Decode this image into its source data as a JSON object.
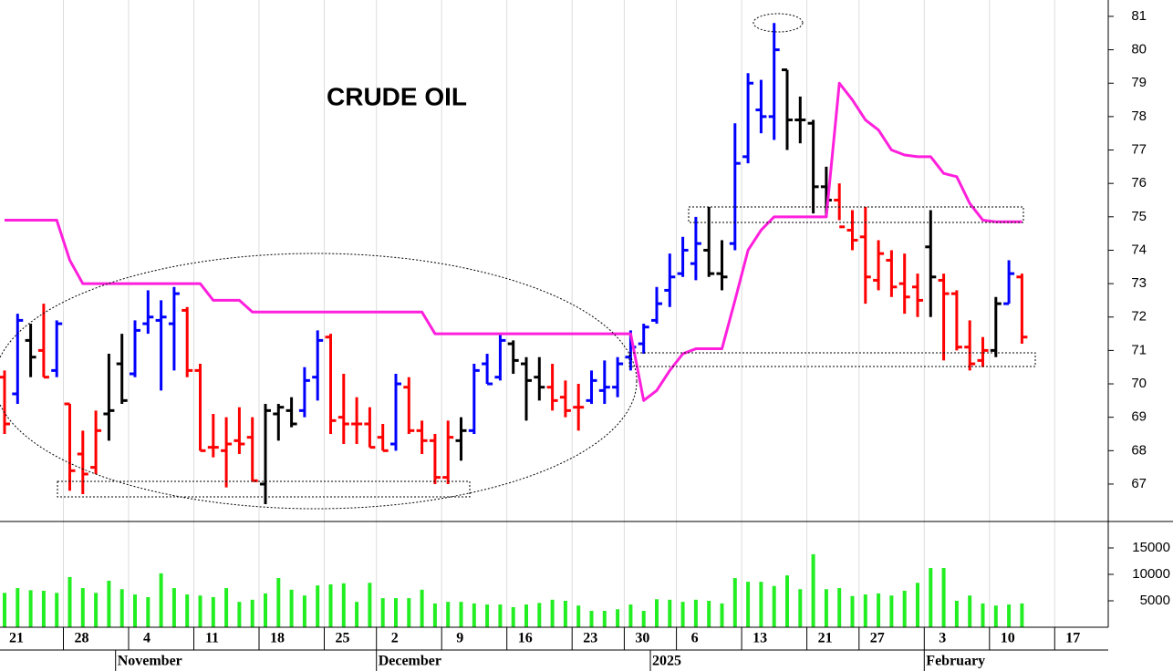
{
  "chart_data": {
    "type": "ohlc",
    "title": "CRUDE OIL",
    "categories": [
      "21",
      null,
      null,
      null,
      null,
      "28",
      null,
      null,
      null,
      null,
      "4",
      null,
      null,
      null,
      null,
      "11",
      null,
      null,
      null,
      null,
      "18",
      null,
      null,
      null,
      null,
      "25",
      null,
      null,
      null,
      "2",
      null,
      null,
      null,
      null,
      "9",
      null,
      null,
      null,
      null,
      "16",
      null,
      null,
      null,
      null,
      "23",
      null,
      null,
      null,
      "30",
      null,
      null,
      null,
      "6",
      null,
      null,
      null,
      null,
      "13",
      null,
      null,
      null,
      null,
      "21",
      null,
      null,
      null,
      "27",
      null,
      null,
      null,
      null,
      "3",
      null,
      null,
      null,
      null,
      "10",
      null,
      null,
      null,
      null,
      "17"
    ],
    "month_categories": [
      null,
      null,
      null,
      null,
      null,
      null,
      null,
      null,
      null,
      "November",
      null,
      null,
      null,
      null,
      null,
      null,
      null,
      null,
      null,
      null,
      null,
      null,
      null,
      null,
      null,
      null,
      null,
      null,
      null,
      "December",
      null,
      null,
      null,
      null,
      null,
      null,
      null,
      null,
      null,
      null,
      null,
      null,
      null,
      null,
      null,
      null,
      null,
      null,
      null,
      null,
      "2025",
      null,
      null,
      null,
      null,
      null,
      null,
      null,
      null,
      null,
      null,
      null,
      null,
      null,
      null,
      null,
      null,
      null,
      null,
      null,
      null,
      "February",
      null,
      null,
      null,
      null,
      null,
      null,
      null,
      null,
      null,
      null
    ],
    "ohlc": {
      "open": [
        70.2,
        69.7,
        71.3,
        71.0,
        70.4,
        69.4,
        67.9,
        67.5,
        69.1,
        70.6,
        70.3,
        71.8,
        71.9,
        71.8,
        72.2,
        70.4,
        68.1,
        68.0,
        68.3,
        68.4,
        67.0,
        69.1,
        69.2,
        69.2,
        70.2,
        71.4,
        69.0,
        68.8,
        68.8,
        68.4,
        68.2,
        69.9,
        68.6,
        68.3,
        67.2,
        68.3,
        68.6,
        70.6,
        70.2,
        71.2,
        70.6,
        70.2,
        69.9,
        69.6,
        69.3,
        69.5,
        69.8,
        69.9,
        70.8,
        71.2,
        71.9,
        72.8,
        73.3,
        73.6,
        74.0,
        73.3,
        74.2,
        76.8,
        78.2,
        78.0,
        79.4,
        77.9,
        77.8,
        75.9,
        75.5,
        74.6,
        74.4,
        73.1,
        73.7,
        73.0,
        72.9,
        74.1,
        73.1,
        72.7,
        71.1,
        70.7,
        71.0,
        72.4,
        73.2,
        null,
        null,
        null
      ],
      "high": [
        70.4,
        72.1,
        71.8,
        72.4,
        71.9,
        69.4,
        68.6,
        69.2,
        70.9,
        71.5,
        71.9,
        72.8,
        72.5,
        72.9,
        72.3,
        70.6,
        69.1,
        69.0,
        69.3,
        69.0,
        69.4,
        69.4,
        69.6,
        70.5,
        71.6,
        71.5,
        70.3,
        69.6,
        69.3,
        68.8,
        70.3,
        70.2,
        68.9,
        68.5,
        68.9,
        69.0,
        70.6,
        70.9,
        71.5,
        71.3,
        70.8,
        70.8,
        70.6,
        70.1,
        70.0,
        70.4,
        70.7,
        70.8,
        71.6,
        71.8,
        72.9,
        73.9,
        74.4,
        75.0,
        75.3,
        74.3,
        77.8,
        79.3,
        79.1,
        80.8,
        79.4,
        78.6,
        77.9,
        76.5,
        76.0,
        75.2,
        75.3,
        74.3,
        74.0,
        73.9,
        73.3,
        75.2,
        73.3,
        72.8,
        71.9,
        71.4,
        72.6,
        73.7,
        73.3,
        null,
        null,
        null
      ],
      "low": [
        68.5,
        69.4,
        70.2,
        70.2,
        70.2,
        66.8,
        66.7,
        67.3,
        68.3,
        69.4,
        70.2,
        71.5,
        69.8,
        70.4,
        70.2,
        68.0,
        67.8,
        66.9,
        67.9,
        67.1,
        66.4,
        68.3,
        68.7,
        69.0,
        69.5,
        68.5,
        68.2,
        68.2,
        68.1,
        68.0,
        68.0,
        68.5,
        67.9,
        67.0,
        67.0,
        67.7,
        68.5,
        70.0,
        70.1,
        70.3,
        68.9,
        69.5,
        69.2,
        69.0,
        68.6,
        69.4,
        69.4,
        69.6,
        70.4,
        70.9,
        71.8,
        72.3,
        73.2,
        73.1,
        73.2,
        72.8,
        74.0,
        76.6,
        77.5,
        77.3,
        77.0,
        77.2,
        75.1,
        75.0,
        74.9,
        74.0,
        72.4,
        72.8,
        72.6,
        72.1,
        72.0,
        72.0,
        70.7,
        71.0,
        70.4,
        70.5,
        70.8,
        72.4,
        71.2,
        null,
        null,
        null
      ],
      "close": [
        68.8,
        71.9,
        70.8,
        70.2,
        71.8,
        67.4,
        67.3,
        68.6,
        69.2,
        69.5,
        71.6,
        72.0,
        72.0,
        72.7,
        70.4,
        68.0,
        68.1,
        68.2,
        68.2,
        67.1,
        69.2,
        69.3,
        68.8,
        70.1,
        71.3,
        68.9,
        68.8,
        68.8,
        68.1,
        68.0,
        70.0,
        68.6,
        68.3,
        67.2,
        68.4,
        68.6,
        70.4,
        70.0,
        71.3,
        70.7,
        70.1,
        69.9,
        69.5,
        69.2,
        69.3,
        70.1,
        69.9,
        70.6,
        71.1,
        71.7,
        72.4,
        73.2,
        74.0,
        74.2,
        73.3,
        73.2,
        76.6,
        79.0,
        78.0,
        80.0,
        77.9,
        77.9,
        75.9,
        75.5,
        74.7,
        74.3,
        73.2,
        73.9,
        72.9,
        72.6,
        72.5,
        73.2,
        72.7,
        71.1,
        70.6,
        71.0,
        72.4,
        73.3,
        71.4,
        null,
        null,
        null
      ],
      "colors": [
        "red",
        "blue",
        "black",
        "red",
        "blue",
        "red",
        "red",
        "red",
        "black",
        "black",
        "blue",
        "blue",
        "blue",
        "blue",
        "red",
        "red",
        "red",
        "red",
        "red",
        "red",
        "black",
        "black",
        "black",
        "blue",
        "blue",
        "red",
        "red",
        "red",
        "red",
        "red",
        "blue",
        "red",
        "red",
        "red",
        "red",
        "black",
        "blue",
        "blue",
        "blue",
        "black",
        "black",
        "black",
        "red",
        "red",
        "red",
        "blue",
        "blue",
        "blue",
        "blue",
        "blue",
        "blue",
        "blue",
        "blue",
        "blue",
        "black",
        "black",
        "blue",
        "blue",
        "blue",
        "blue",
        "black",
        "black",
        "black",
        "black",
        "red",
        "red",
        "red",
        "red",
        "red",
        "red",
        "red",
        "black",
        "red",
        "red",
        "red",
        "red",
        "black",
        "blue",
        "red",
        null,
        null,
        null
      ]
    },
    "line": {
      "color": "#ff1fdc",
      "values": [
        74.9,
        74.9,
        74.9,
        74.9,
        74.9,
        73.7,
        73.0,
        73.0,
        73.0,
        73.0,
        73.0,
        73.0,
        73.0,
        73.0,
        73.0,
        73.0,
        72.5,
        72.5,
        72.5,
        72.15,
        72.15,
        72.15,
        72.15,
        72.15,
        72.15,
        72.15,
        72.15,
        72.15,
        72.15,
        72.15,
        72.15,
        72.15,
        72.15,
        71.5,
        71.5,
        71.5,
        71.5,
        71.5,
        71.5,
        71.5,
        71.5,
        71.5,
        71.5,
        71.5,
        71.5,
        71.5,
        71.5,
        71.5,
        71.5,
        69.5,
        69.8,
        70.4,
        70.9,
        71.05,
        71.05,
        71.05,
        72.5,
        74.0,
        74.6,
        75.0,
        75.0,
        75.0,
        75.0,
        75.0,
        79.0,
        78.5,
        77.9,
        77.6,
        77.0,
        76.85,
        76.8,
        76.8,
        76.3,
        76.2,
        75.4,
        74.9,
        74.85,
        74.85,
        74.85,
        null,
        null,
        null
      ]
    },
    "ylim": [
      65.88,
      81.49
    ],
    "yticks": [
      67,
      68,
      69,
      70,
      71,
      72,
      73,
      74,
      75,
      76,
      77,
      78,
      79,
      80,
      81
    ],
    "volume": {
      "color": "#22ee22",
      "ylim": [
        0,
        20000
      ],
      "yticks": [
        5000,
        10000,
        15000
      ],
      "values": [
        6500,
        7400,
        7000,
        6900,
        6500,
        9500,
        7400,
        6500,
        8800,
        7200,
        6200,
        5700,
        10200,
        7400,
        6200,
        6000,
        5700,
        7400,
        4800,
        5200,
        6400,
        9300,
        7100,
        6000,
        7900,
        8100,
        8300,
        4800,
        8400,
        5500,
        5500,
        5500,
        7100,
        4500,
        4800,
        4800,
        4500,
        4300,
        4300,
        3800,
        4300,
        4600,
        5200,
        5000,
        4100,
        3100,
        3100,
        3400,
        4300,
        3100,
        5300,
        5200,
        4800,
        5200,
        5000,
        4500,
        9300,
        8600,
        8600,
        7800,
        9800,
        7200,
        13800,
        7200,
        7400,
        5900,
        6200,
        6400,
        6000,
        6900,
        8400,
        11200,
        11200,
        5000,
        6000,
        4500,
        4100,
        4300,
        4500,
        null,
        null,
        null
      ]
    }
  }
}
